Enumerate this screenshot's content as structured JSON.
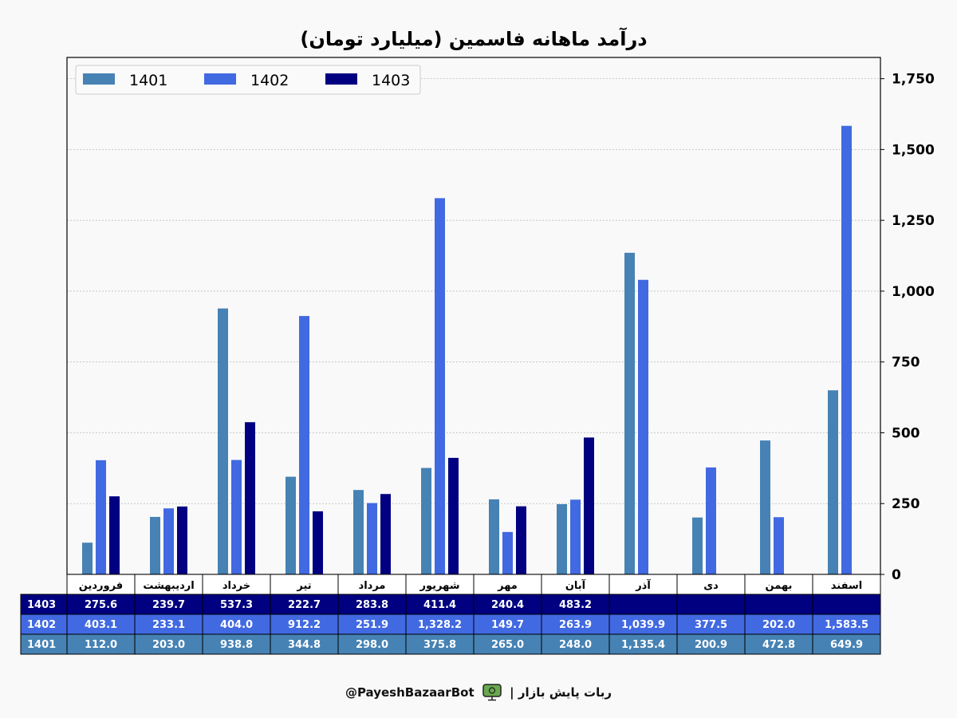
{
  "chart_data": {
    "type": "bar",
    "title": "درآمد ماهانه فاسمین (میلیارد تومان)",
    "categories": [
      "فروردین",
      "اردیبهشت",
      "خرداد",
      "تیر",
      "مرداد",
      "شهریور",
      "مهر",
      "آبان",
      "آذر",
      "دی",
      "بهمن",
      "اسفند"
    ],
    "series": [
      {
        "name": "1401",
        "color": "#4682b4",
        "values": [
          112.0,
          203.0,
          938.8,
          344.8,
          298.0,
          375.8,
          265.0,
          248.0,
          1135.4,
          200.9,
          472.8,
          649.9
        ],
        "labels": [
          "112.0",
          "203.0",
          "938.8",
          "344.8",
          "298.0",
          "375.8",
          "265.0",
          "248.0",
          "1,135.4",
          "200.9",
          "472.8",
          "649.9"
        ]
      },
      {
        "name": "1402",
        "color": "#4169e1",
        "values": [
          403.1,
          233.1,
          404.0,
          912.2,
          251.9,
          1328.2,
          149.7,
          263.9,
          1039.9,
          377.5,
          202.0,
          1583.5
        ],
        "labels": [
          "403.1",
          "233.1",
          "404.0",
          "912.2",
          "251.9",
          "1,328.2",
          "149.7",
          "263.9",
          "1,039.9",
          "377.5",
          "202.0",
          "1,583.5"
        ]
      },
      {
        "name": "1403",
        "color": "#000080",
        "values": [
          275.6,
          239.7,
          537.3,
          222.7,
          283.8,
          411.4,
          240.4,
          483.2,
          null,
          null,
          null,
          null
        ],
        "labels": [
          "275.6",
          "239.7",
          "537.3",
          "222.7",
          "283.8",
          "411.4",
          "240.4",
          "483.2",
          "",
          "",
          "",
          ""
        ]
      }
    ],
    "ylim": [
      0,
      1825
    ],
    "yticks": [
      0,
      250,
      500,
      750,
      1000,
      1250,
      1500,
      1750
    ],
    "ytick_labels": [
      "0",
      "250",
      "500",
      "750",
      "1,000",
      "1,250",
      "1,500",
      "1,750"
    ],
    "y_axis_side": "right",
    "grid": true,
    "legend": "top-left",
    "table_row_order": [
      "1403",
      "1402",
      "1401"
    ]
  },
  "footer": {
    "handle": "@PayeshBazaarBot",
    "separator": "|",
    "bot_name": "ربات پایش بازار"
  }
}
